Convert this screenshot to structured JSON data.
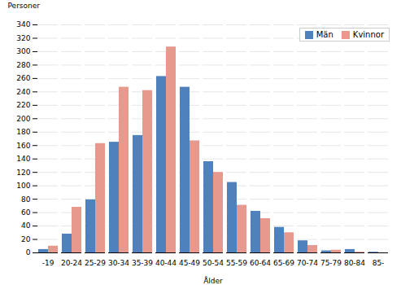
{
  "chart_data": {
    "type": "bar",
    "categories": [
      "-19",
      "20-24",
      "25-29",
      "30-34",
      "35-39",
      "40-44",
      "45-49",
      "50-54",
      "55-59",
      "60-64",
      "65-69",
      "70-74",
      "75-79",
      "80-84",
      "85-"
    ],
    "series": [
      {
        "name": "Män",
        "color": "#4f81bd",
        "values": [
          5,
          28,
          79,
          165,
          175,
          263,
          247,
          136,
          105,
          62,
          38,
          18,
          3,
          5,
          1
        ]
      },
      {
        "name": "Kvinnor",
        "color": "#e8998d",
        "values": [
          10,
          68,
          163,
          247,
          242,
          307,
          167,
          120,
          71,
          51,
          30,
          11,
          4,
          1,
          0
        ]
      }
    ],
    "ylabel": "Personer",
    "xlabel": "Ålder",
    "ylim": [
      0,
      340
    ],
    "yticks": [
      0,
      20,
      40,
      60,
      80,
      100,
      120,
      140,
      160,
      180,
      200,
      220,
      240,
      260,
      280,
      300,
      320,
      340
    ],
    "grid": true,
    "legend": "upper right"
  }
}
